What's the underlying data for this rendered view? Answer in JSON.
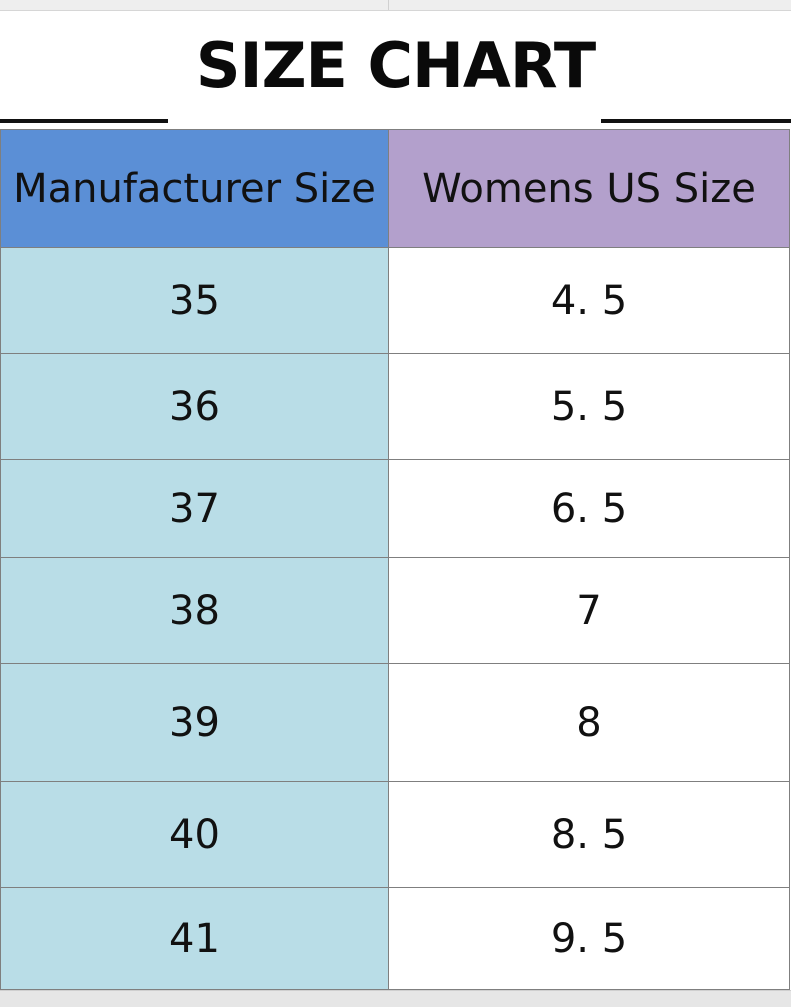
{
  "title": "SIZE CHART",
  "table": {
    "headers": {
      "manufacturer_size": "Manufacturer Size",
      "womens_us_size": "Womens US Size"
    },
    "rows": [
      {
        "manufacturer_size": "35",
        "womens_us_size": "4. 5"
      },
      {
        "manufacturer_size": "36",
        "womens_us_size": "5. 5"
      },
      {
        "manufacturer_size": "37",
        "womens_us_size": "6. 5"
      },
      {
        "manufacturer_size": "38",
        "womens_us_size": "7"
      },
      {
        "manufacturer_size": "39",
        "womens_us_size": "8"
      },
      {
        "manufacturer_size": "40",
        "womens_us_size": "8. 5"
      },
      {
        "manufacturer_size": "41",
        "womens_us_size": "9. 5"
      }
    ]
  },
  "colors": {
    "manufacturer_header": "#5b8fd6",
    "us_header": "#b3a0cc",
    "manufacturer_cells": "#b9dde7",
    "us_cells": "#ffffff"
  }
}
